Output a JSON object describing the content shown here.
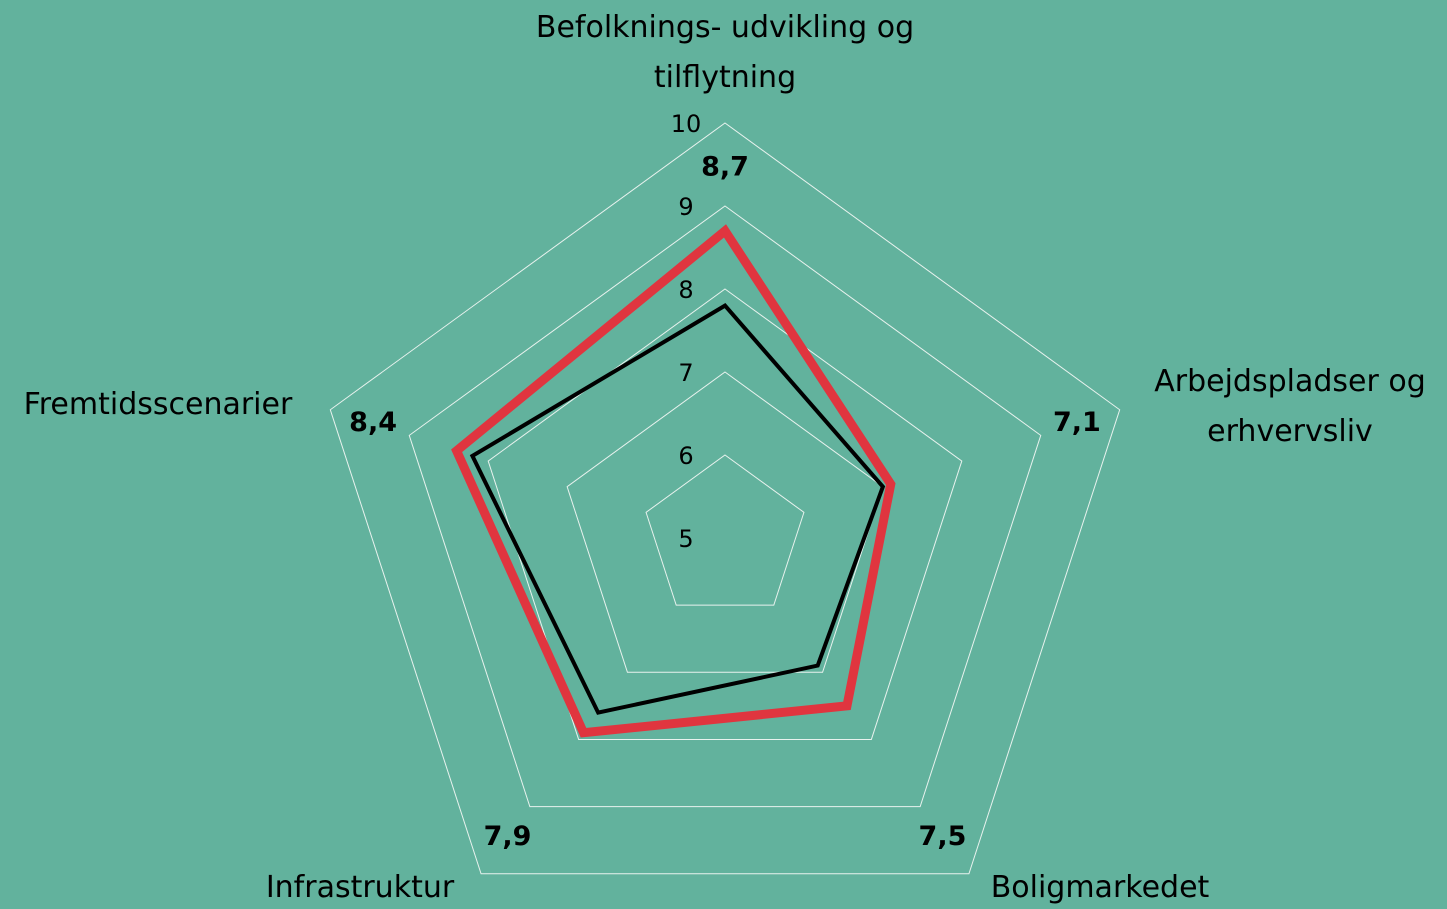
{
  "chart_data": {
    "type": "radar",
    "categories": [
      "Befolknings- udvikling og tilflytning",
      "Arbejdspladser og erhvervsliv",
      "Boligmarkedet",
      "Infrastruktur",
      "Fremtidsscenarier"
    ],
    "ylim": [
      5,
      10
    ],
    "yticks": [
      5,
      6,
      7,
      8,
      9,
      10
    ],
    "grid": true,
    "series": [
      {
        "color": "#e0353f",
        "values": [
          8.7,
          7.1,
          7.5,
          7.9,
          8.4
        ],
        "value_labels": [
          "8,7",
          "7,1",
          "7,5",
          "7,9",
          "8,4"
        ]
      },
      {
        "color": "#000000",
        "values": [
          7.8,
          7.0,
          6.9,
          7.6,
          8.2
        ]
      }
    ]
  }
}
